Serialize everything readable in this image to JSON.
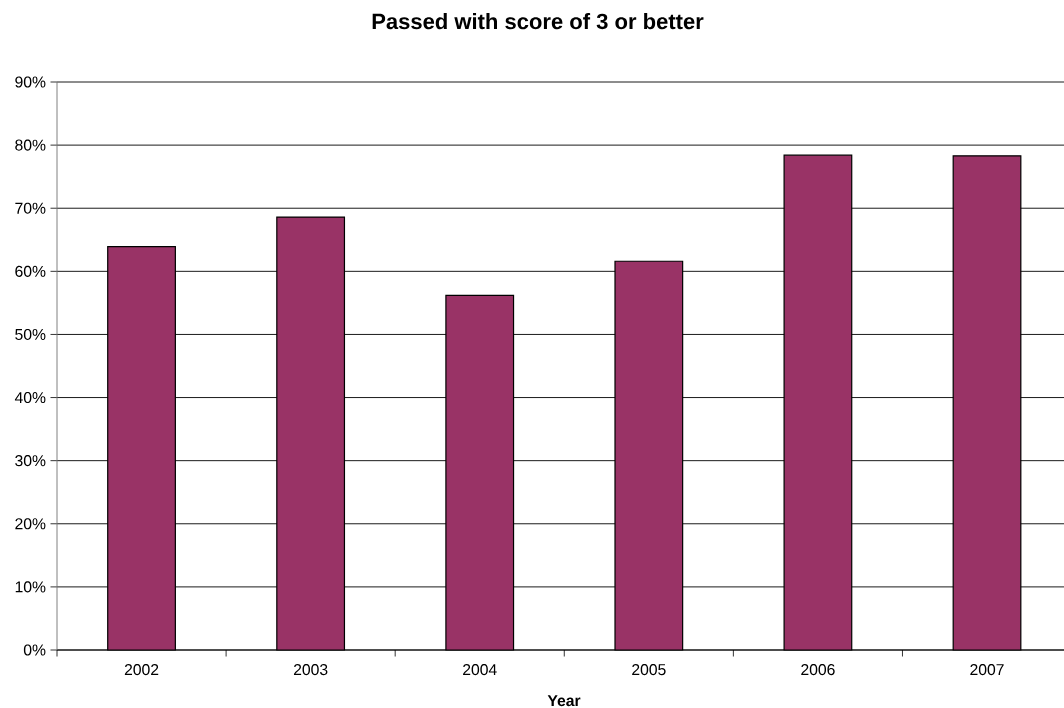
{
  "chart_data": {
    "type": "bar",
    "title": "Passed with score of 3 or better",
    "xlabel": "Year",
    "categories": [
      "2002",
      "2003",
      "2004",
      "2005",
      "2006",
      "2007"
    ],
    "values": [
      63.9,
      68.6,
      56.2,
      61.6,
      78.4,
      78.3
    ],
    "color": "#993366",
    "ylim": [
      0,
      90
    ],
    "yticks": [
      {
        "value": 0,
        "label": "0%"
      },
      {
        "value": 10,
        "label": "10%"
      },
      {
        "value": 20,
        "label": "20%"
      },
      {
        "value": 30,
        "label": "30%"
      },
      {
        "value": 40,
        "label": "40%"
      },
      {
        "value": 50,
        "label": "50%"
      },
      {
        "value": 60,
        "label": "60%"
      },
      {
        "value": 70,
        "label": "70%"
      },
      {
        "value": 80,
        "label": "80%"
      },
      {
        "value": 90,
        "label": "90%"
      }
    ],
    "grid": "y"
  }
}
